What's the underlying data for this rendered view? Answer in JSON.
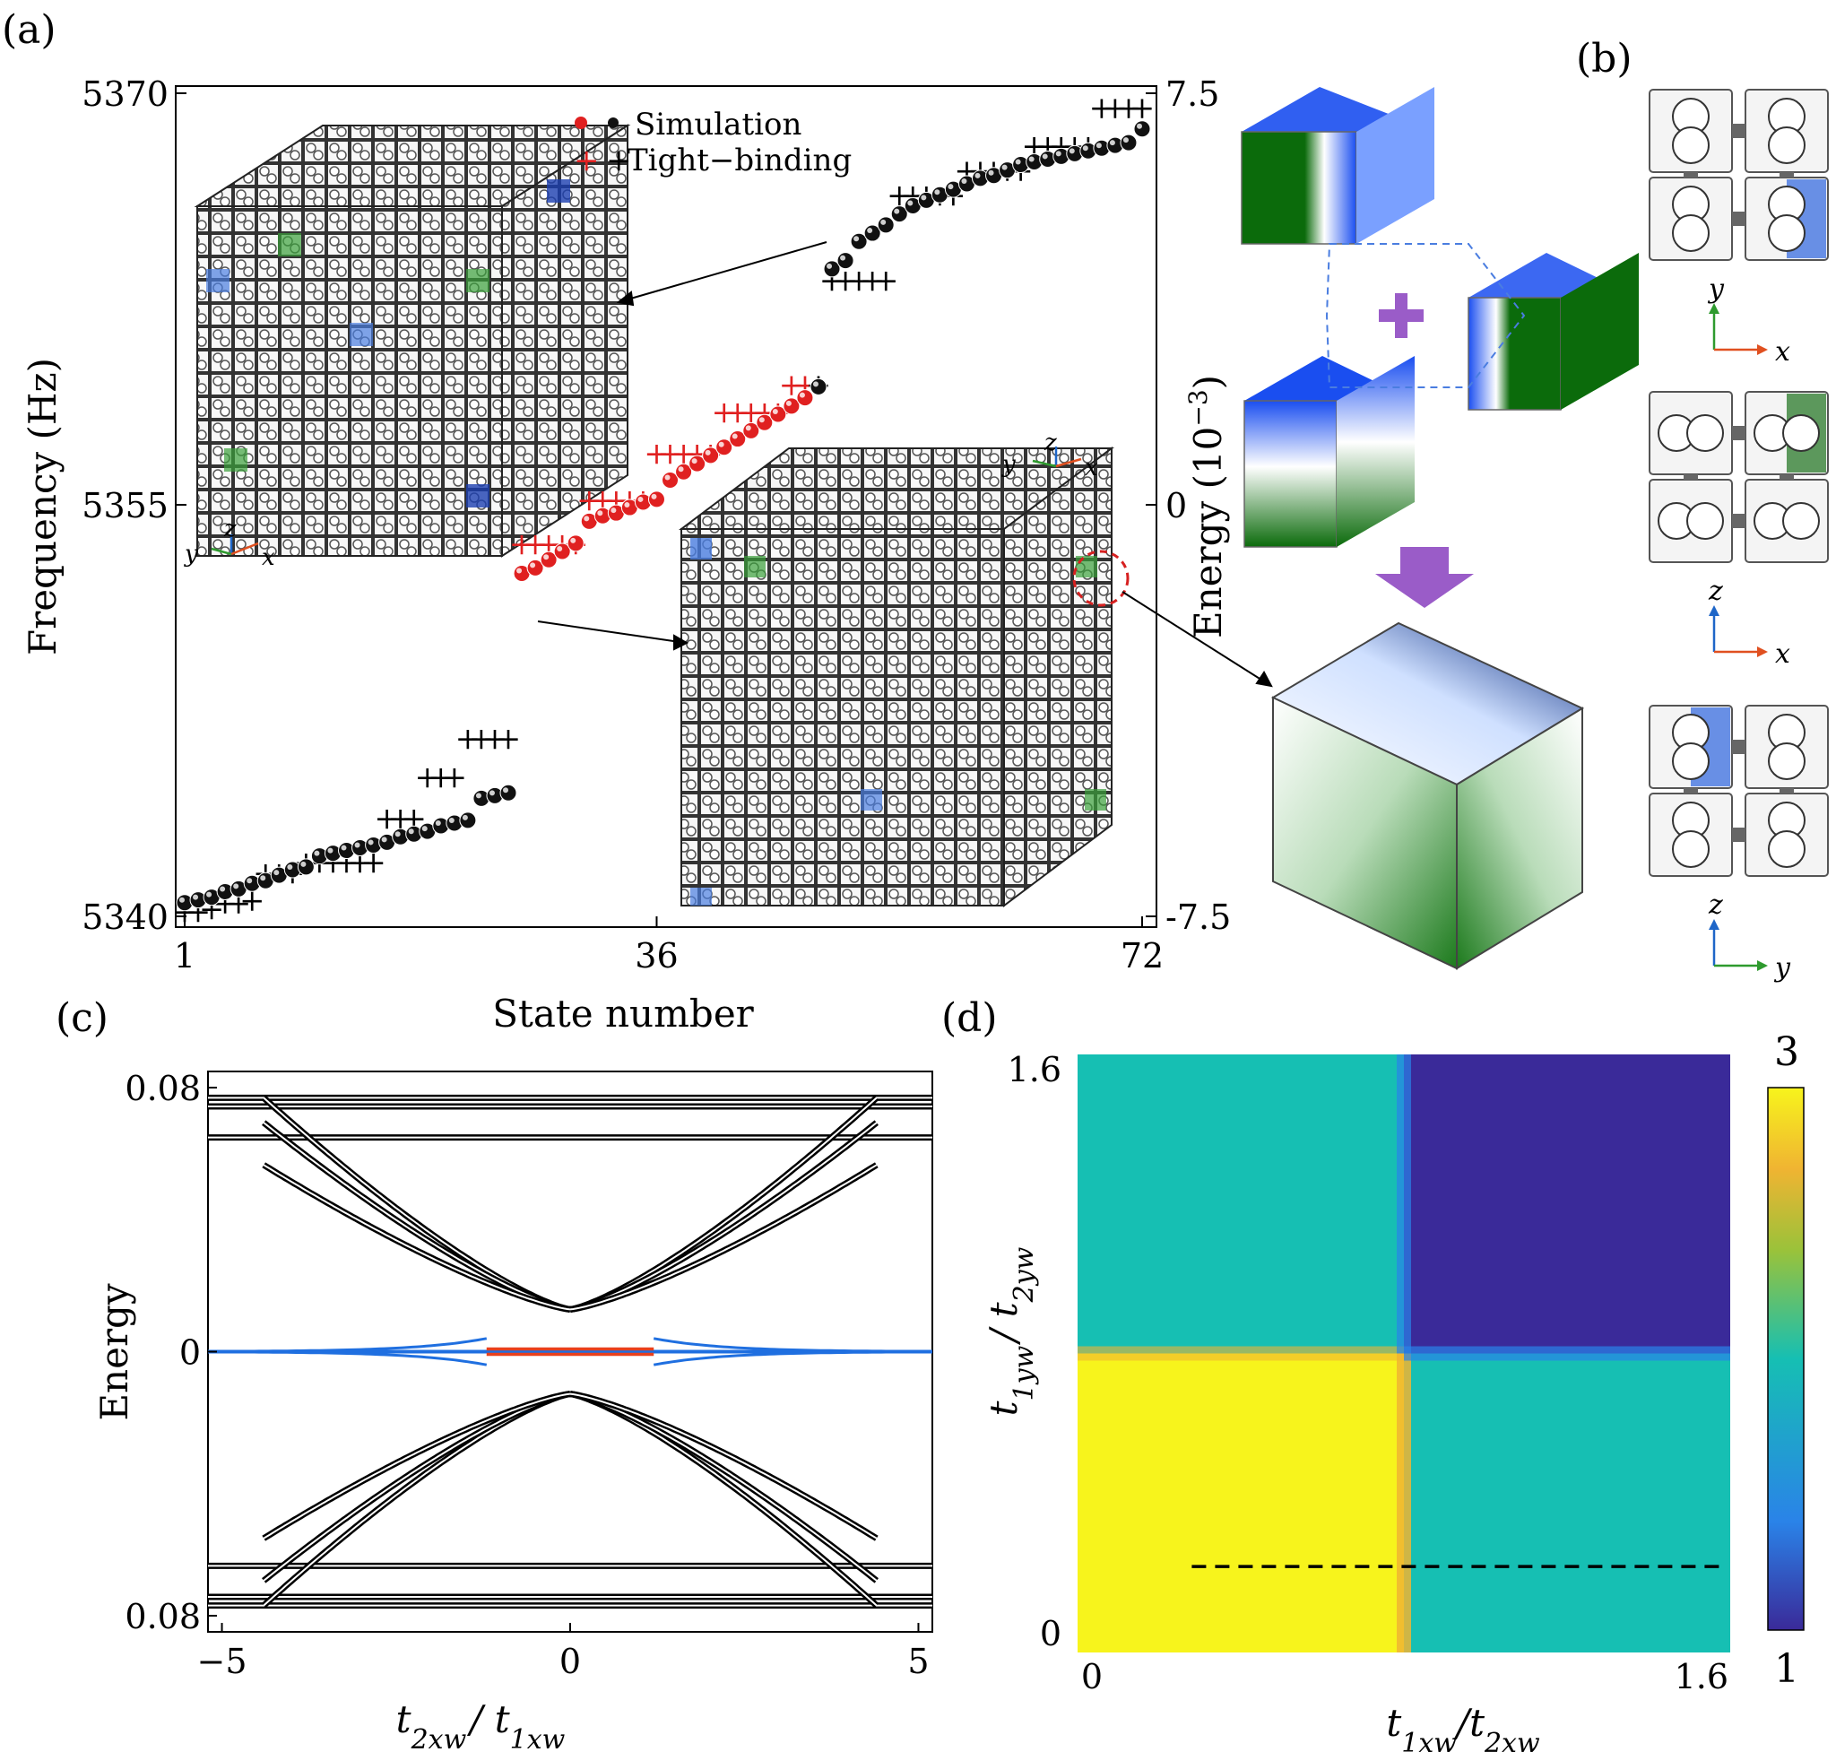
{
  "panels": {
    "a": {
      "label": "(a)"
    },
    "b": {
      "label": "(b)"
    },
    "c": {
      "label": "(c)"
    },
    "d": {
      "label": "(d)"
    }
  },
  "panel_b": {
    "axis_pairs": [
      {
        "vertical": "y",
        "horizontal": "x"
      },
      {
        "vertical": "z",
        "horizontal": "x"
      },
      {
        "vertical": "z",
        "horizontal": "y"
      }
    ]
  },
  "panel_a_insets": {
    "cube1_axes": {
      "z": "z",
      "y": "y",
      "x": "x"
    },
    "cube2_axes": {
      "z": "z",
      "y": "y",
      "x": "x"
    }
  },
  "chart_data": [
    {
      "id": "a",
      "type": "scatter",
      "xlabel": "State number",
      "ylabel": "Frequency (Hz)",
      "y2label": "Energy (10",
      "y2label_exp": "−3",
      "y2label_close": ")",
      "x_ticks": [
        "1",
        "36",
        "72"
      ],
      "y_ticks": [
        "5340",
        "5355",
        "5370"
      ],
      "y2_ticks": [
        "-7.5",
        "0",
        "7.5"
      ],
      "xlim": [
        1,
        72
      ],
      "ylim": [
        5340,
        5370
      ],
      "y2lim": [
        -7.5,
        7.5
      ],
      "legend": [
        "Simulation",
        "Tight−binding"
      ],
      "series": [
        {
          "name": "Simulation",
          "x": [
            1,
            2,
            3,
            4,
            5,
            6,
            7,
            8,
            9,
            10,
            11,
            12,
            13,
            14,
            15,
            16,
            17,
            18,
            19,
            20,
            21,
            22,
            23,
            24,
            25,
            26,
            27,
            28,
            29,
            30,
            31,
            32,
            33,
            34,
            35,
            36,
            37,
            38,
            39,
            40,
            41,
            42,
            43,
            44,
            45,
            46,
            47,
            48,
            49,
            50,
            51,
            52,
            53,
            54,
            55,
            56,
            57,
            58,
            59,
            60,
            61,
            62,
            63,
            64,
            65,
            66,
            67,
            68,
            69,
            70,
            71,
            72
          ],
          "y": [
            5340.5,
            5340.6,
            5340.7,
            5340.9,
            5341.0,
            5341.2,
            5341.3,
            5341.5,
            5341.7,
            5341.8,
            5342.2,
            5342.3,
            5342.4,
            5342.5,
            5342.6,
            5342.7,
            5342.9,
            5343.0,
            5343.1,
            5343.3,
            5343.4,
            5343.5,
            5344.3,
            5344.4,
            5344.5,
            5352.5,
            5352.7,
            5353.0,
            5353.3,
            5353.6,
            5354.4,
            5354.6,
            5354.7,
            5354.9,
            5355.1,
            5355.2,
            5355.9,
            5356.2,
            5356.5,
            5356.8,
            5357.1,
            5357.4,
            5357.7,
            5358.0,
            5358.3,
            5358.6,
            5358.9,
            5359.3,
            5363.6,
            5363.9,
            5364.6,
            5364.9,
            5365.2,
            5365.6,
            5365.9,
            5366.1,
            5366.3,
            5366.5,
            5366.7,
            5366.9,
            5367.0,
            5367.2,
            5367.4,
            5367.5,
            5367.6,
            5367.7,
            5367.8,
            5367.9,
            5368.0,
            5368.1,
            5368.2,
            5368.7
          ],
          "colors_note": "states 26-47 red, others black"
        },
        {
          "name": "Tight−binding",
          "x": [
            1,
            2,
            3,
            4,
            5,
            6,
            7,
            8,
            9,
            10,
            11,
            12,
            13,
            14,
            15,
            16,
            17,
            18,
            19,
            20,
            21,
            22,
            23,
            24,
            25,
            26,
            27,
            28,
            29,
            30,
            31,
            32,
            33,
            34,
            35,
            36,
            37,
            38,
            39,
            40,
            41,
            42,
            43,
            44,
            45,
            46,
            47,
            48,
            49,
            50,
            51,
            52,
            53,
            54,
            55,
            56,
            57,
            58,
            59,
            60,
            61,
            62,
            63,
            64,
            65,
            66,
            67,
            68,
            69,
            70,
            71,
            72
          ],
          "y": [
            5340.2,
            5340.2,
            5340.3,
            5340.5,
            5340.5,
            5340.6,
            5341.6,
            5341.6,
            5341.6,
            5342.0,
            5342.0,
            5342.0,
            5342.0,
            5342.0,
            5342.0,
            5343.6,
            5343.6,
            5343.6,
            5345.1,
            5345.1,
            5345.1,
            5346.5,
            5346.5,
            5346.5,
            5346.5,
            5353.6,
            5353.6,
            5353.6,
            5353.6,
            5353.6,
            5355.2,
            5355.2,
            5355.2,
            5355.2,
            5355.2,
            5356.9,
            5356.9,
            5356.9,
            5356.9,
            5356.9,
            5358.4,
            5358.4,
            5358.4,
            5358.4,
            5358.4,
            5359.4,
            5359.4,
            5359.4,
            5363.2,
            5363.2,
            5363.2,
            5363.2,
            5363.2,
            5366.3,
            5366.3,
            5366.3,
            5366.3,
            5366.3,
            5367.2,
            5367.2,
            5367.2,
            5367.2,
            5367.2,
            5368.1,
            5368.1,
            5368.1,
            5368.1,
            5368.1,
            5369.5,
            5369.5,
            5369.5,
            5369.5
          ]
        }
      ]
    },
    {
      "id": "c",
      "type": "line",
      "xlabel_main": "t",
      "xlabel_sub1": "2xw",
      "xlabel_sep": "/ t",
      "xlabel_sub2": "1xw",
      "ylabel": "Energy",
      "x_ticks": [
        "−5",
        "0",
        "5"
      ],
      "y_ticks": [
        "0.08",
        "0",
        "0.08"
      ],
      "xlim": [
        -5.2,
        5.2
      ],
      "ylim": [
        -0.08,
        0.08
      ],
      "bulk_levels": [
        0.0769,
        0.0743,
        0.0649,
        -0.0649,
        -0.0743,
        -0.0769
      ],
      "crossing_energy": 0.0128,
      "zero_mode_colors": {
        "corner": "#e8401c",
        "edge": "#1f6fe0",
        "bulk": "#000000"
      },
      "corner_range": [
        -1.2,
        1.2
      ]
    },
    {
      "id": "d",
      "type": "heatmap",
      "xlabel_main": "t",
      "xlabel_sub1": "1xw",
      "xlabel_sep": "/t",
      "xlabel_sub2": "2xw",
      "ylabel_main": "t",
      "ylabel_sub1": "1yw",
      "ylabel_sep": "/ t",
      "ylabel_sub2": "2yw",
      "x_ticks": [
        "0",
        "1.6"
      ],
      "y_ticks": [
        "0",
        "1.6"
      ],
      "xlim": [
        0,
        1.6
      ],
      "ylim": [
        0,
        1.6
      ],
      "transition": 0.8,
      "regions": [
        {
          "x": "low",
          "y": "low",
          "value": 3
        },
        {
          "x": "high",
          "y": "low",
          "value": 2
        },
        {
          "x": "low",
          "y": "high",
          "value": 2
        },
        {
          "x": "high",
          "y": "high",
          "value": 1
        }
      ],
      "colorbar": {
        "min": "1",
        "max": "3",
        "colors": [
          "#3a2a99",
          "#2a83e8",
          "#16bfb3",
          "#9ac23a",
          "#f0b432",
          "#f7f41c"
        ]
      },
      "dashed_line_y": 0.23,
      "dashed_line_x": [
        0.28,
        1.6
      ]
    }
  ]
}
